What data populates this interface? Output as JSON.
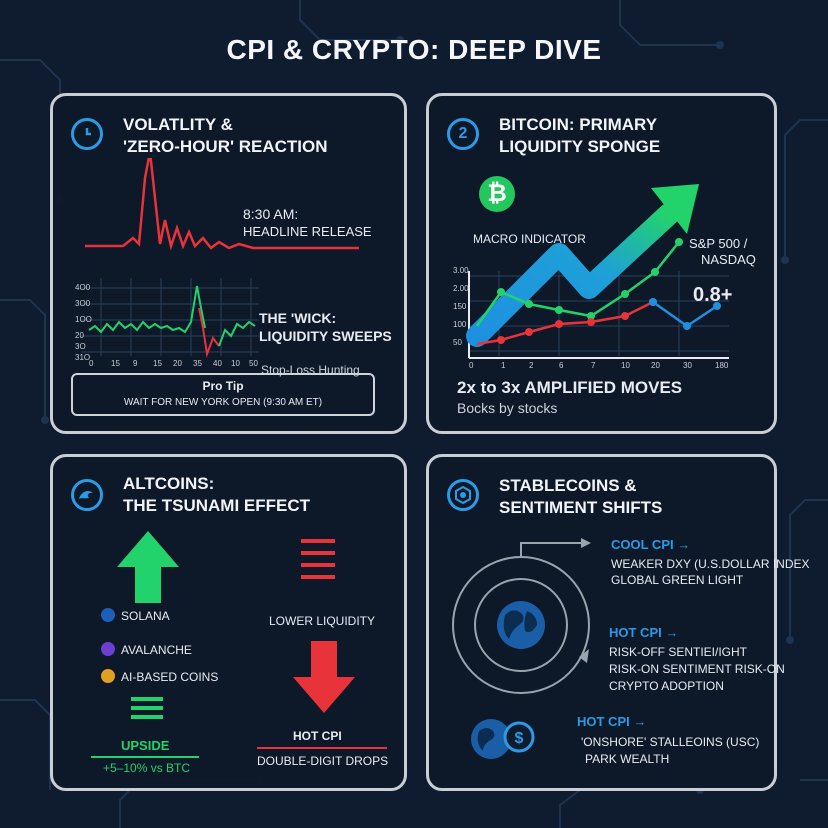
{
  "title": "CPI & CRYPTO: DEEP DIVE",
  "colors": {
    "accent": "#2a9be6",
    "green": "#22d36b",
    "red": "#e8333b",
    "blue": "#1e90e0",
    "background": "#0f1b2e"
  },
  "panel1": {
    "icon": "clock-icon",
    "title_line1": "VOLATLITY &",
    "title_line2": "'ZERO-HOUR' REACTION",
    "release_line1": "8:30 AM:",
    "release_line2": "HEADLINE RELEASE",
    "y_ticks": [
      "4O0",
      "3O0",
      "1OO",
      "20",
      "3O",
      "31O"
    ],
    "x_ticks": [
      "0",
      "15",
      "9",
      "15",
      "20",
      "35",
      "40",
      "10",
      "50"
    ],
    "wick_line1": "THE 'WICK:",
    "wick_line2": "LIQUIDITY SWEEPS",
    "stoploss": "Stop-Loss Hunting",
    "protip_title": "Pro Tip",
    "protip_text": "WAIT FOR NEW YORK OPEN (9:30 AM ET)"
  },
  "panel2": {
    "icon_number": "2",
    "title_line1": "BITCOIN: PRIMARY",
    "title_line2": "LIQUIDITY SPONGE",
    "btc_symbol": "₿",
    "macro": "MACRO INDICATOR",
    "sp_line1": "S&P 500 /",
    "sp_line2": "NASDAQ",
    "value": "0.8+",
    "y_ticks": [
      "3.00",
      "2.00",
      "150",
      "100",
      "50"
    ],
    "x_ticks": [
      "0",
      "1",
      "2",
      "6",
      "7",
      "10",
      "20",
      "30",
      "180"
    ],
    "amplified": "2x to 3x AMPLIFIED MOVES",
    "bocks": "Bocks by stocks"
  },
  "panel3": {
    "icon": "wave-icon",
    "title_line1": "ALTCOINS:",
    "title_line2": "THE TSUNAMI EFFECT",
    "coins": [
      "SOLANA",
      "AVALANCHE",
      "AI-BASED COINS"
    ],
    "lower_liquidity": "LOWER LIQUIDITY",
    "upside": "UPSIDE",
    "upside_value": "+5–10% vs BTC",
    "hot_cpi": "HOT CPI",
    "double_digit": "DOUBLE-DIGIT DROPS"
  },
  "panel4": {
    "icon": "hexagon-icon",
    "title_line1": "STABLECOINS &",
    "title_line2": "SENTIMENT SHIFTS",
    "cool_cpi": "COOL CPI →",
    "cool_line1": "WEAKER DXY (U.S.DOLLAR INDEX",
    "cool_line2": "GLOBAL GREEN LIGHT",
    "hot_cpi": "HOT CPI →",
    "hot_line1": "RISK-OFF SENTIEI/IGHT",
    "hot_line2": "RISK-ON SENTIMENT RISK-ON",
    "hot_line3": "CRYPTO ADOPTION",
    "hot2_cpi": "HOT CPI →",
    "hot2_line1": "'ONSHORE' STALLEOINS (USC)",
    "hot2_line2": "PARK WEALTH"
  }
}
